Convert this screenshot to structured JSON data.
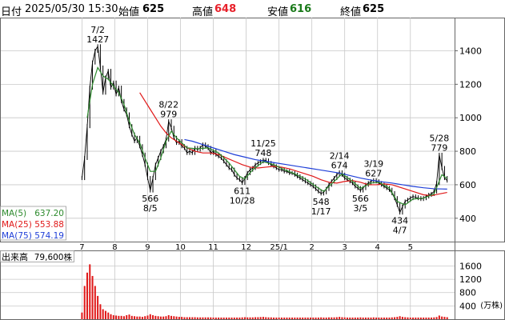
{
  "header": {
    "date_label": "日付",
    "datetime": "2025/05/30 15:30",
    "open_label": "始値",
    "open": "625",
    "high_label": "高値",
    "high": "648",
    "low_label": "安値",
    "low": "616",
    "close_label": "終値",
    "close": "625"
  },
  "colors": {
    "up": "#000000",
    "high": "#e8202a",
    "low": "#1a7a1a",
    "ma5": "#2e8b2e",
    "ma25": "#e01818",
    "ma75": "#1f3fd8",
    "volume": "#e01818",
    "grid": "#c8c8c8"
  },
  "legend": [
    {
      "label": "MA(5)",
      "value": "637.20"
    },
    {
      "label": "MA(25)",
      "value": "553.88"
    },
    {
      "label": "MA(75)",
      "value": "574.19"
    }
  ],
  "volume_panel": {
    "title": "出来高",
    "value": "79,600株",
    "unit": "(万株)",
    "ticks": [
      "1600",
      "1200",
      "800",
      "400"
    ]
  },
  "chart_data": {
    "type": "line",
    "price_axis": {
      "ylim": [
        270,
        1560
      ],
      "ticks": [
        400,
        600,
        800,
        1000,
        1200,
        1400
      ]
    },
    "volume_axis": {
      "ylim": [
        0,
        1900
      ],
      "ticks": [
        400,
        800,
        1200,
        1600
      ]
    },
    "xlim": [
      0,
      232
    ],
    "x_ticks": [
      {
        "label": "7",
        "x": 8
      },
      {
        "label": "8",
        "x": 28
      },
      {
        "label": "9",
        "x": 48
      },
      {
        "label": "10",
        "x": 68
      },
      {
        "label": "11",
        "x": 88
      },
      {
        "label": "12",
        "x": 108
      },
      {
        "label": "25/1",
        "x": 128
      },
      {
        "label": "2",
        "x": 148
      },
      {
        "label": "3",
        "x": 168
      },
      {
        "label": "4",
        "x": 188
      },
      {
        "label": "5",
        "x": 208
      }
    ],
    "price_points": [
      [
        0,
        640
      ],
      [
        1,
        760
      ],
      [
        2,
        950
      ],
      [
        3,
        1180
      ],
      [
        4,
        1330
      ],
      [
        5,
        1400
      ],
      [
        6,
        1427
      ],
      [
        7,
        1300
      ],
      [
        8,
        1150
      ],
      [
        9,
        1240
      ],
      [
        10,
        1280
      ],
      [
        11,
        1180
      ],
      [
        12,
        1210
      ],
      [
        13,
        1140
      ],
      [
        14,
        1180
      ],
      [
        15,
        1100
      ],
      [
        16,
        1050
      ],
      [
        17,
        1020
      ],
      [
        18,
        950
      ],
      [
        19,
        900
      ],
      [
        20,
        860
      ],
      [
        21,
        880
      ],
      [
        22,
        830
      ],
      [
        23,
        780
      ],
      [
        24,
        720
      ],
      [
        25,
        640
      ],
      [
        26,
        566
      ],
      [
        27,
        640
      ],
      [
        28,
        720
      ],
      [
        29,
        760
      ],
      [
        30,
        800
      ],
      [
        31,
        830
      ],
      [
        32,
        870
      ],
      [
        33,
        979
      ],
      [
        34,
        940
      ],
      [
        35,
        880
      ],
      [
        36,
        850
      ],
      [
        37,
        860
      ],
      [
        38,
        830
      ],
      [
        39,
        820
      ],
      [
        40,
        790
      ],
      [
        41,
        800
      ],
      [
        42,
        790
      ],
      [
        43,
        820
      ],
      [
        44,
        810
      ],
      [
        45,
        820
      ],
      [
        46,
        840
      ],
      [
        47,
        830
      ],
      [
        48,
        820
      ],
      [
        49,
        790
      ],
      [
        50,
        800
      ],
      [
        51,
        780
      ],
      [
        52,
        770
      ],
      [
        53,
        760
      ],
      [
        54,
        740
      ],
      [
        55,
        720
      ],
      [
        56,
        700
      ],
      [
        57,
        690
      ],
      [
        58,
        660
      ],
      [
        59,
        640
      ],
      [
        60,
        630
      ],
      [
        61,
        611
      ],
      [
        62,
        640
      ],
      [
        63,
        670
      ],
      [
        64,
        690
      ],
      [
        65,
        700
      ],
      [
        66,
        720
      ],
      [
        67,
        730
      ],
      [
        68,
        740
      ],
      [
        69,
        748
      ],
      [
        70,
        745
      ],
      [
        71,
        730
      ],
      [
        72,
        720
      ],
      [
        73,
        710
      ],
      [
        74,
        700
      ],
      [
        75,
        690
      ],
      [
        76,
        690
      ],
      [
        77,
        680
      ],
      [
        78,
        680
      ],
      [
        79,
        670
      ],
      [
        80,
        670
      ],
      [
        81,
        660
      ],
      [
        82,
        650
      ],
      [
        83,
        640
      ],
      [
        84,
        630
      ],
      [
        85,
        620
      ],
      [
        86,
        610
      ],
      [
        87,
        600
      ],
      [
        88,
        590
      ],
      [
        89,
        575
      ],
      [
        90,
        560
      ],
      [
        91,
        548
      ],
      [
        92,
        555
      ],
      [
        93,
        575
      ],
      [
        94,
        600
      ],
      [
        95,
        620
      ],
      [
        96,
        640
      ],
      [
        97,
        660
      ],
      [
        98,
        674
      ],
      [
        99,
        660
      ],
      [
        100,
        640
      ],
      [
        101,
        630
      ],
      [
        102,
        620
      ],
      [
        103,
        610
      ],
      [
        104,
        590
      ],
      [
        105,
        580
      ],
      [
        106,
        566
      ],
      [
        107,
        580
      ],
      [
        108,
        600
      ],
      [
        109,
        610
      ],
      [
        110,
        620
      ],
      [
        111,
        627
      ],
      [
        112,
        620
      ],
      [
        113,
        610
      ],
      [
        114,
        600
      ],
      [
        115,
        590
      ],
      [
        116,
        580
      ],
      [
        117,
        570
      ],
      [
        118,
        550
      ],
      [
        119,
        520
      ],
      [
        120,
        480
      ],
      [
        121,
        434
      ],
      [
        122,
        470
      ],
      [
        123,
        500
      ],
      [
        124,
        510
      ],
      [
        125,
        520
      ],
      [
        126,
        530
      ],
      [
        127,
        525
      ],
      [
        128,
        520
      ],
      [
        129,
        515
      ],
      [
        130,
        520
      ],
      [
        131,
        530
      ],
      [
        132,
        540
      ],
      [
        133,
        545
      ],
      [
        134,
        560
      ],
      [
        135,
        610
      ],
      [
        136,
        779
      ],
      [
        137,
        700
      ],
      [
        138,
        640
      ],
      [
        139,
        625
      ]
    ],
    "ma25": [
      [
        22,
        1150
      ],
      [
        24,
        1100
      ],
      [
        26,
        1050
      ],
      [
        28,
        1000
      ],
      [
        30,
        950
      ],
      [
        32,
        910
      ],
      [
        34,
        880
      ],
      [
        36,
        860
      ],
      [
        38,
        840
      ],
      [
        40,
        820
      ],
      [
        43,
        800
      ],
      [
        46,
        790
      ],
      [
        49,
        790
      ],
      [
        52,
        780
      ],
      [
        55,
        760
      ],
      [
        58,
        740
      ],
      [
        61,
        720
      ],
      [
        64,
        705
      ],
      [
        67,
        700
      ],
      [
        70,
        705
      ],
      [
        73,
        710
      ],
      [
        76,
        705
      ],
      [
        79,
        695
      ],
      [
        82,
        680
      ],
      [
        85,
        665
      ],
      [
        88,
        650
      ],
      [
        91,
        630
      ],
      [
        94,
        615
      ],
      [
        97,
        610
      ],
      [
        100,
        620
      ],
      [
        103,
        625
      ],
      [
        106,
        615
      ],
      [
        109,
        600
      ],
      [
        112,
        600
      ],
      [
        115,
        605
      ],
      [
        118,
        600
      ],
      [
        121,
        585
      ],
      [
        124,
        570
      ],
      [
        127,
        555
      ],
      [
        130,
        540
      ],
      [
        133,
        535
      ],
      [
        136,
        545
      ],
      [
        139,
        554
      ]
    ],
    "ma75": [
      [
        39,
        870
      ],
      [
        42,
        860
      ],
      [
        46,
        840
      ],
      [
        50,
        820
      ],
      [
        54,
        800
      ],
      [
        58,
        780
      ],
      [
        62,
        765
      ],
      [
        66,
        750
      ],
      [
        70,
        740
      ],
      [
        74,
        730
      ],
      [
        78,
        720
      ],
      [
        82,
        710
      ],
      [
        86,
        700
      ],
      [
        90,
        690
      ],
      [
        94,
        680
      ],
      [
        98,
        670
      ],
      [
        102,
        655
      ],
      [
        106,
        640
      ],
      [
        110,
        628
      ],
      [
        114,
        618
      ],
      [
        118,
        610
      ],
      [
        122,
        600
      ],
      [
        126,
        590
      ],
      [
        130,
        582
      ],
      [
        134,
        576
      ],
      [
        137,
        575
      ],
      [
        139,
        574
      ]
    ],
    "ma5": [
      [
        2,
        1000
      ],
      [
        4,
        1200
      ],
      [
        6,
        1300
      ],
      [
        8,
        1250
      ],
      [
        10,
        1230
      ],
      [
        12,
        1190
      ],
      [
        14,
        1150
      ],
      [
        16,
        1080
      ],
      [
        18,
        980
      ],
      [
        20,
        900
      ],
      [
        22,
        850
      ],
      [
        24,
        760
      ],
      [
        26,
        680
      ],
      [
        28,
        680
      ],
      [
        30,
        760
      ],
      [
        32,
        860
      ],
      [
        34,
        920
      ],
      [
        36,
        880
      ],
      [
        38,
        850
      ],
      [
        40,
        820
      ],
      [
        44,
        815
      ],
      [
        48,
        820
      ],
      [
        52,
        790
      ],
      [
        56,
        730
      ],
      [
        60,
        650
      ],
      [
        62,
        635
      ],
      [
        65,
        690
      ],
      [
        69,
        738
      ],
      [
        73,
        720
      ],
      [
        77,
        690
      ],
      [
        81,
        665
      ],
      [
        85,
        635
      ],
      [
        89,
        590
      ],
      [
        92,
        560
      ],
      [
        96,
        620
      ],
      [
        99,
        665
      ],
      [
        103,
        620
      ],
      [
        106,
        578
      ],
      [
        110,
        610
      ],
      [
        113,
        615
      ],
      [
        117,
        580
      ],
      [
        120,
        500
      ],
      [
        123,
        480
      ],
      [
        126,
        515
      ],
      [
        130,
        520
      ],
      [
        134,
        545
      ],
      [
        137,
        660
      ],
      [
        139,
        637
      ]
    ],
    "annotations": [
      {
        "date": "7/2",
        "value": "1427",
        "x": 6,
        "price": 1427,
        "pos": "above"
      },
      {
        "date": "8/22",
        "value": "979",
        "x": 33,
        "price": 979,
        "pos": "above"
      },
      {
        "date": "8/5",
        "value": "566",
        "x": 26,
        "price": 566,
        "pos": "below"
      },
      {
        "date": "10/28",
        "value": "611",
        "x": 61,
        "price": 611,
        "pos": "below"
      },
      {
        "date": "11/25",
        "value": "748",
        "x": 69,
        "price": 748,
        "pos": "above"
      },
      {
        "date": "1/17",
        "value": "548",
        "x": 91,
        "price": 548,
        "pos": "below"
      },
      {
        "date": "2/14",
        "value": "674",
        "x": 98,
        "price": 674,
        "pos": "above"
      },
      {
        "date": "3/5",
        "value": "566",
        "x": 106,
        "price": 566,
        "pos": "below"
      },
      {
        "date": "3/19",
        "value": "627",
        "x": 111,
        "price": 627,
        "pos": "above"
      },
      {
        "date": "4/7",
        "value": "434",
        "x": 121,
        "price": 434,
        "pos": "below"
      },
      {
        "date": "5/28",
        "value": "779",
        "x": 136,
        "price": 779,
        "pos": "above"
      }
    ],
    "volume_bars": [
      [
        0,
        200
      ],
      [
        1,
        1000
      ],
      [
        2,
        1400
      ],
      [
        3,
        1650
      ],
      [
        4,
        1300
      ],
      [
        5,
        1000
      ],
      [
        6,
        700
      ],
      [
        7,
        450
      ],
      [
        8,
        300
      ],
      [
        9,
        250
      ],
      [
        10,
        200
      ],
      [
        11,
        150
      ],
      [
        12,
        120
      ],
      [
        13,
        110
      ],
      [
        14,
        100
      ],
      [
        15,
        100
      ],
      [
        16,
        90
      ],
      [
        17,
        120
      ],
      [
        18,
        140
      ],
      [
        19,
        100
      ],
      [
        20,
        90
      ],
      [
        21,
        80
      ],
      [
        22,
        80
      ],
      [
        23,
        70
      ],
      [
        24,
        90
      ],
      [
        25,
        110
      ],
      [
        26,
        150
      ],
      [
        27,
        120
      ],
      [
        28,
        100
      ],
      [
        29,
        90
      ],
      [
        30,
        80
      ],
      [
        31,
        80
      ],
      [
        32,
        90
      ],
      [
        33,
        120
      ],
      [
        34,
        100
      ],
      [
        35,
        90
      ],
      [
        36,
        80
      ],
      [
        37,
        70
      ],
      [
        38,
        70
      ],
      [
        39,
        60
      ],
      [
        40,
        60
      ],
      [
        41,
        60
      ],
      [
        42,
        60
      ],
      [
        43,
        60
      ],
      [
        44,
        55
      ],
      [
        45,
        55
      ],
      [
        46,
        55
      ],
      [
        47,
        55
      ],
      [
        48,
        55
      ],
      [
        49,
        55
      ],
      [
        50,
        50
      ],
      [
        51,
        50
      ],
      [
        52,
        50
      ],
      [
        53,
        50
      ],
      [
        54,
        50
      ],
      [
        55,
        50
      ],
      [
        56,
        50
      ],
      [
        57,
        50
      ],
      [
        58,
        50
      ],
      [
        59,
        50
      ],
      [
        60,
        50
      ],
      [
        61,
        55
      ],
      [
        62,
        60
      ],
      [
        63,
        55
      ],
      [
        64,
        55
      ],
      [
        65,
        55
      ],
      [
        66,
        60
      ],
      [
        67,
        60
      ],
      [
        68,
        65
      ],
      [
        69,
        70
      ],
      [
        70,
        60
      ],
      [
        71,
        55
      ],
      [
        72,
        55
      ],
      [
        73,
        50
      ],
      [
        74,
        50
      ],
      [
        75,
        50
      ],
      [
        76,
        50
      ],
      [
        77,
        50
      ],
      [
        78,
        50
      ],
      [
        79,
        50
      ],
      [
        80,
        50
      ],
      [
        81,
        50
      ],
      [
        82,
        50
      ],
      [
        83,
        50
      ],
      [
        84,
        50
      ],
      [
        85,
        50
      ],
      [
        86,
        50
      ],
      [
        87,
        50
      ],
      [
        88,
        50
      ],
      [
        89,
        50
      ],
      [
        90,
        50
      ],
      [
        91,
        55
      ],
      [
        92,
        50
      ],
      [
        93,
        50
      ],
      [
        94,
        55
      ],
      [
        95,
        55
      ],
      [
        96,
        55
      ],
      [
        97,
        60
      ],
      [
        98,
        70
      ],
      [
        99,
        60
      ],
      [
        100,
        55
      ],
      [
        101,
        50
      ],
      [
        102,
        50
      ],
      [
        103,
        50
      ],
      [
        104,
        50
      ],
      [
        105,
        50
      ],
      [
        106,
        55
      ],
      [
        107,
        50
      ],
      [
        108,
        50
      ],
      [
        109,
        50
      ],
      [
        110,
        50
      ],
      [
        111,
        55
      ],
      [
        112,
        50
      ],
      [
        113,
        50
      ],
      [
        114,
        50
      ],
      [
        115,
        50
      ],
      [
        116,
        50
      ],
      [
        117,
        50
      ],
      [
        118,
        55
      ],
      [
        119,
        60
      ],
      [
        120,
        70
      ],
      [
        121,
        90
      ],
      [
        122,
        70
      ],
      [
        123,
        60
      ],
      [
        124,
        55
      ],
      [
        125,
        50
      ],
      [
        126,
        50
      ],
      [
        127,
        50
      ],
      [
        128,
        50
      ],
      [
        129,
        50
      ],
      [
        130,
        50
      ],
      [
        131,
        50
      ],
      [
        132,
        50
      ],
      [
        133,
        50
      ],
      [
        134,
        55
      ],
      [
        135,
        65
      ],
      [
        136,
        110
      ],
      [
        137,
        80
      ],
      [
        138,
        70
      ],
      [
        139,
        60
      ]
    ]
  }
}
